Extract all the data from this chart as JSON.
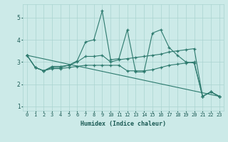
{
  "xlabel": "Humidex (Indice chaleur)",
  "bg_color": "#cceae8",
  "line_color": "#2d7a6e",
  "grid_color": "#aad4d0",
  "xlim": [
    -0.5,
    23.5
  ],
  "ylim": [
    0.8,
    5.6
  ],
  "yticks": [
    1,
    2,
    3,
    4,
    5
  ],
  "xticks": [
    0,
    1,
    2,
    3,
    4,
    5,
    6,
    7,
    8,
    9,
    10,
    11,
    12,
    13,
    14,
    15,
    16,
    17,
    18,
    19,
    20,
    21,
    22,
    23
  ],
  "lines": [
    {
      "x": [
        0,
        1,
        2,
        3,
        4,
        5,
        6,
        7,
        8,
        9,
        10,
        11,
        12,
        13,
        14,
        15,
        16,
        17,
        18,
        19,
        20,
        21,
        22,
        23
      ],
      "y": [
        3.3,
        2.75,
        2.6,
        2.8,
        2.8,
        2.85,
        3.05,
        3.9,
        4.0,
        5.3,
        3.1,
        3.15,
        4.45,
        2.55,
        2.55,
        4.3,
        4.45,
        3.65,
        3.3,
        3.0,
        2.95,
        1.45,
        1.65,
        1.45
      ]
    },
    {
      "x": [
        0,
        1,
        2,
        3,
        4,
        5,
        6,
        7,
        8,
        9,
        10,
        11,
        12,
        13,
        14,
        15,
        16,
        17,
        18,
        19,
        20,
        21,
        22,
        23
      ],
      "y": [
        3.3,
        2.75,
        2.6,
        2.75,
        2.75,
        2.85,
        3.0,
        3.25,
        3.25,
        3.3,
        3.0,
        3.1,
        3.15,
        3.2,
        3.25,
        3.3,
        3.35,
        3.45,
        3.5,
        3.55,
        3.6,
        1.45,
        1.65,
        1.45
      ]
    },
    {
      "x": [
        0,
        23
      ],
      "y": [
        3.3,
        1.45
      ]
    },
    {
      "x": [
        0,
        1,
        2,
        3,
        4,
        5,
        6,
        7,
        8,
        9,
        10,
        11,
        12,
        13,
        14,
        15,
        16,
        17,
        18,
        19,
        20,
        21,
        22,
        23
      ],
      "y": [
        3.3,
        2.75,
        2.6,
        2.7,
        2.7,
        2.75,
        2.8,
        2.85,
        2.85,
        2.85,
        2.85,
        2.85,
        2.6,
        2.6,
        2.6,
        2.65,
        2.75,
        2.85,
        2.9,
        2.95,
        3.0,
        1.45,
        1.65,
        1.45
      ]
    }
  ]
}
